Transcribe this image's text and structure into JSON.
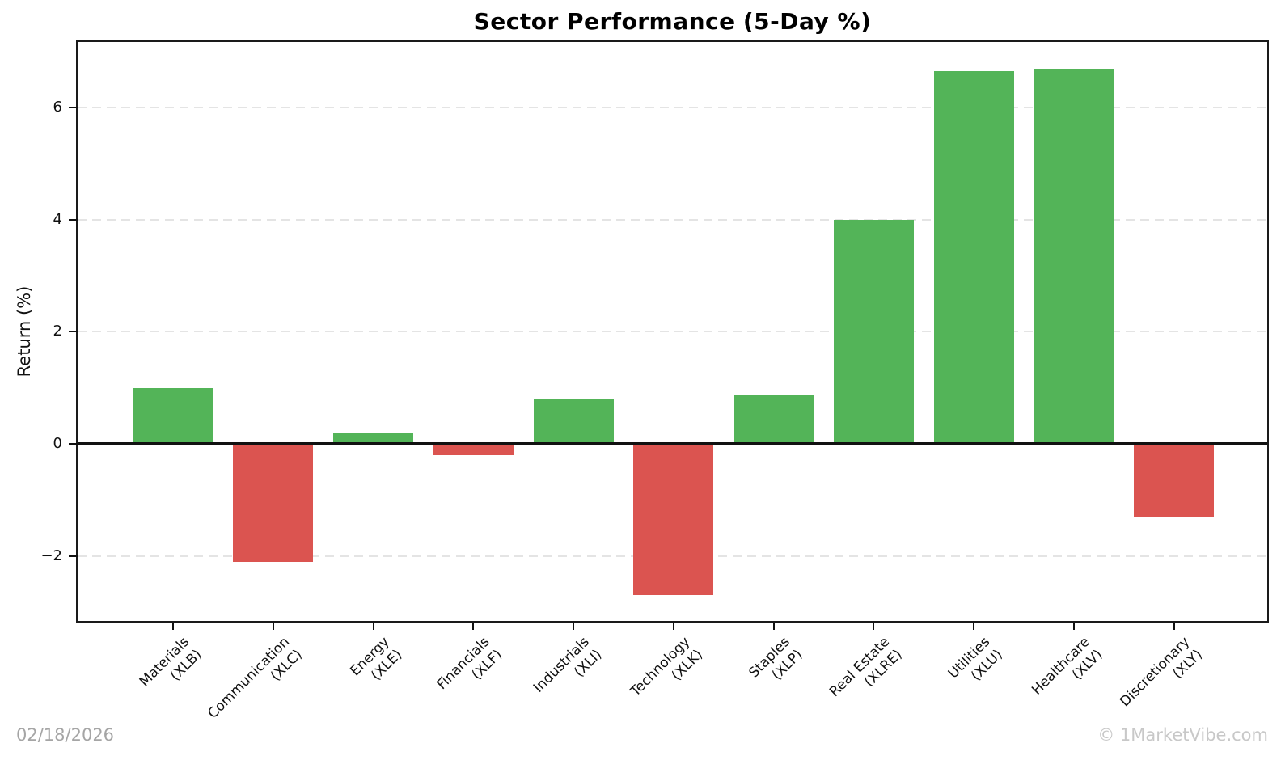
{
  "chart_data": {
    "type": "bar",
    "title": "Sector Performance (5-Day %)",
    "xlabel": "",
    "ylabel": "Return (%)",
    "categories": [
      "Materials",
      "Communication",
      "Energy",
      "Financials",
      "Industrials",
      "Technology",
      "Staples",
      "Real Estate",
      "Utilities",
      "Healthcare",
      "Discretionary"
    ],
    "tickers": [
      "XLB",
      "XLC",
      "XLE",
      "XLF",
      "XLI",
      "XLK",
      "XLP",
      "XLRE",
      "XLU",
      "XLV",
      "XLY"
    ],
    "values": [
      1.0,
      -2.1,
      0.2,
      -0.2,
      0.8,
      -2.7,
      0.88,
      4.0,
      6.65,
      6.7,
      -1.3
    ],
    "yticks": [
      -2,
      0,
      2,
      4,
      6
    ],
    "ylim": [
      -3.16,
      7.17
    ],
    "grid": {
      "axis": "y",
      "style": "dashed",
      "at": [
        -2,
        2,
        4,
        6
      ]
    },
    "legend": null,
    "colors": {
      "positive": "#53b458",
      "negative": "#db5450"
    },
    "annotations": {
      "date": "02/18/2026",
      "watermark": "© 1MarketVibe.com"
    }
  }
}
